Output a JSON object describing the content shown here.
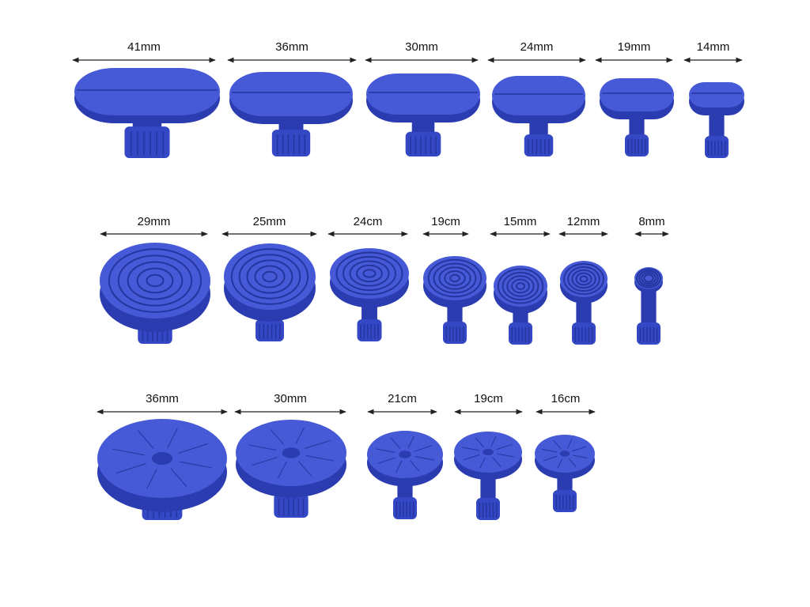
{
  "rows": [
    {
      "items": [
        "41mm",
        "36mm",
        "30mm",
        "24mm",
        "19mm",
        "14mm"
      ]
    },
    {
      "items": [
        "29mm",
        "25mm",
        "24cm",
        "19cm",
        "15mm",
        "12mm",
        "8mm"
      ]
    },
    {
      "items": [
        "36mm",
        "30mm",
        "21cm",
        "19cm",
        "16cm"
      ]
    }
  ]
}
